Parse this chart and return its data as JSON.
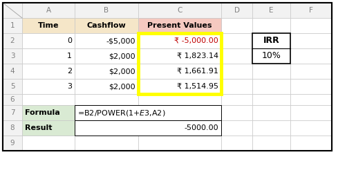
{
  "fig_width": 5.15,
  "fig_height": 2.56,
  "bg_color": "#ffffff",
  "col_labels": [
    "",
    "A",
    "B",
    "C",
    "D",
    "E",
    "F"
  ],
  "row_labels": [
    "",
    "1",
    "2",
    "3",
    "4",
    "5",
    "6",
    "7",
    "8",
    "9"
  ],
  "header_bg_A": "#f5e6c8",
  "header_bg_B": "#f5e6c8",
  "header_bg_C": "#f5c9c0",
  "header_bg_gray": "#f2f2f2",
  "formula_bg": "#d9ead3",
  "yellow_highlight": "#ffff00",
  "grid_color": "#c8c8c8",
  "text_color_normal": "#000000",
  "text_color_red": "#c00000",
  "text_color_header": "#808080",
  "cell_data": {
    "A1": {
      "text": "Time",
      "bold": true,
      "align": "center",
      "bg": "#f5e6c8"
    },
    "B1": {
      "text": "Cashflow",
      "bold": true,
      "align": "center",
      "bg": "#f5e6c8"
    },
    "C1": {
      "text": "Present Values",
      "bold": true,
      "align": "center",
      "bg": "#f5c9c0"
    },
    "A2": {
      "text": "0",
      "bold": false,
      "align": "right",
      "bg": "#ffffff",
      "color": "#000000"
    },
    "B2": {
      "text": "-$5,000",
      "bold": false,
      "align": "right",
      "bg": "#ffffff",
      "color": "#000000"
    },
    "C2": {
      "text": "₹ -5,000.00",
      "bold": false,
      "align": "right",
      "bg": "#ffffff",
      "color": "#c00000"
    },
    "A3": {
      "text": "1",
      "bold": false,
      "align": "right",
      "bg": "#ffffff",
      "color": "#000000"
    },
    "B3": {
      "text": "$2,000",
      "bold": false,
      "align": "right",
      "bg": "#ffffff",
      "color": "#000000"
    },
    "C3": {
      "text": "₹ 1,823.14",
      "bold": false,
      "align": "right",
      "bg": "#ffffff",
      "color": "#000000"
    },
    "A4": {
      "text": "2",
      "bold": false,
      "align": "right",
      "bg": "#ffffff",
      "color": "#000000"
    },
    "B4": {
      "text": "$2,000",
      "bold": false,
      "align": "right",
      "bg": "#ffffff",
      "color": "#000000"
    },
    "C4": {
      "text": "₹ 1,661.91",
      "bold": false,
      "align": "right",
      "bg": "#ffffff",
      "color": "#000000"
    },
    "A5": {
      "text": "3",
      "bold": false,
      "align": "right",
      "bg": "#ffffff",
      "color": "#000000"
    },
    "B5": {
      "text": "$2,000",
      "bold": false,
      "align": "right",
      "bg": "#ffffff",
      "color": "#000000"
    },
    "C5": {
      "text": "₹ 1,514.95",
      "bold": false,
      "align": "right",
      "bg": "#ffffff",
      "color": "#000000"
    },
    "A7": {
      "text": "Formula",
      "bold": true,
      "align": "left",
      "bg": "#d9ead3",
      "color": "#000000"
    },
    "BC7": {
      "text": "=B2/POWER(1+$E$3,A2)",
      "bold": false,
      "align": "left",
      "bg": "#ffffff",
      "color": "#000000"
    },
    "A8": {
      "text": "Result",
      "bold": true,
      "align": "left",
      "bg": "#d9ead3",
      "color": "#000000"
    },
    "BC8": {
      "text": "-5000.00",
      "bold": false,
      "align": "right",
      "bg": "#ffffff",
      "color": "#000000"
    },
    "E2": {
      "text": "IRR",
      "bold": true,
      "align": "center",
      "bg": "#ffffff",
      "color": "#000000"
    },
    "E3": {
      "text": "10%",
      "bold": false,
      "align": "center",
      "bg": "#ffffff",
      "color": "#000000"
    }
  }
}
